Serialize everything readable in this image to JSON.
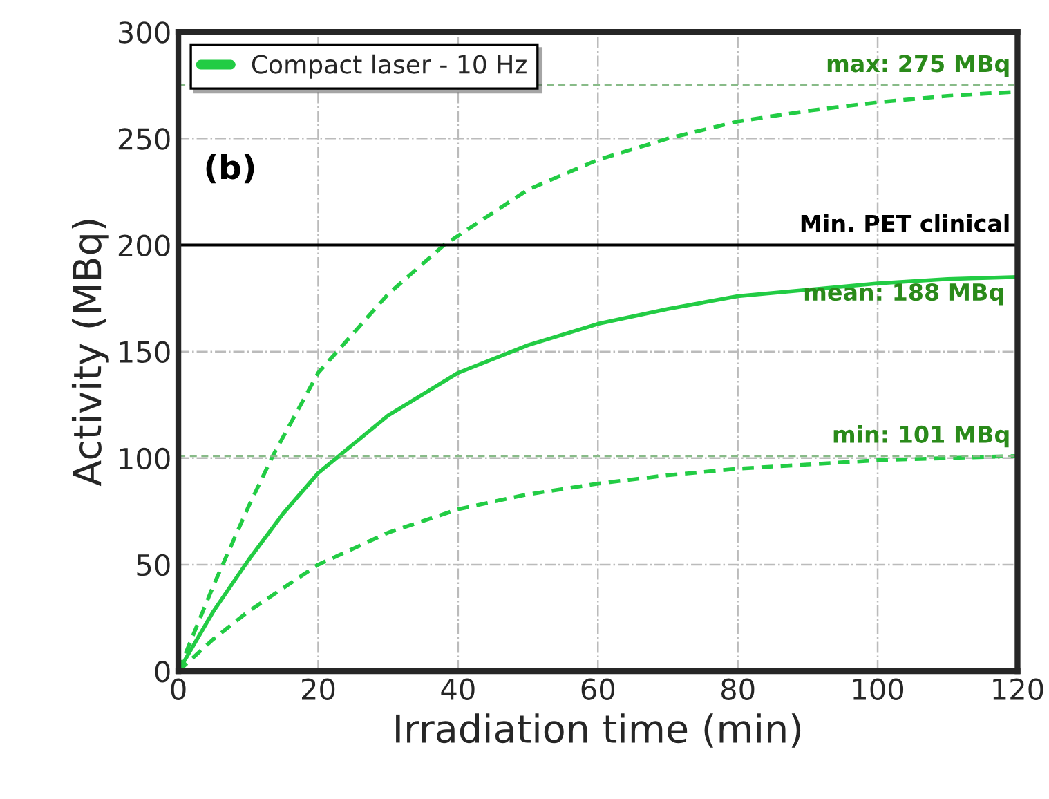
{
  "chart_data": {
    "type": "line",
    "xlabel": "Irradiation time (min)",
    "ylabel": "Activity (MBq)",
    "xlim": [
      0,
      120
    ],
    "ylim": [
      0,
      300
    ],
    "xticks": [
      0,
      20,
      40,
      60,
      80,
      100,
      120
    ],
    "yticks": [
      0,
      50,
      100,
      150,
      200,
      250,
      300
    ],
    "grid": true,
    "legend": "top left",
    "marker": "none",
    "series": [
      {
        "name": "Compact laser - 10 Hz",
        "color": "#22cc44",
        "line_style": "solid",
        "x": [
          0,
          5,
          10,
          15,
          20,
          30,
          40,
          50,
          60,
          70,
          80,
          90,
          100,
          110,
          120
        ],
        "values": [
          0,
          28,
          52,
          74,
          93,
          120,
          140,
          153,
          163,
          170,
          176,
          179,
          182,
          184,
          185
        ]
      },
      {
        "color": "#22cc44",
        "line_style": "dashed",
        "x": [
          0,
          5,
          10,
          13.5,
          20,
          30,
          38,
          50,
          60,
          70,
          80,
          90,
          100,
          110,
          120
        ],
        "values": [
          0,
          40,
          77,
          101,
          140,
          177,
          200,
          226,
          240,
          250,
          258,
          263,
          267,
          270,
          272
        ]
      },
      {
        "color": "#22cc44",
        "line_style": "dashed",
        "x": [
          0,
          5,
          10,
          20,
          30,
          40,
          50,
          60,
          70,
          80,
          90,
          100,
          110,
          120
        ],
        "values": [
          0,
          15,
          28,
          50,
          65,
          76,
          83,
          88,
          92,
          95,
          97,
          99,
          100,
          101
        ]
      }
    ],
    "ref_lines": [
      {
        "axis": "y",
        "value": 275,
        "label": "max: 275 MBq",
        "color": "#88bb88",
        "line_style": "dashed"
      },
      {
        "axis": "y",
        "value": 200,
        "label": "Min. PET clinical",
        "color": "#000000",
        "line_style": "solid"
      },
      {
        "axis": "y",
        "value": 101,
        "label": "min: 101 MBq",
        "color": "#88bb88",
        "line_style": "dashed"
      }
    ],
    "annotations": [
      "(b)",
      "mean: 188 MBq"
    ]
  }
}
